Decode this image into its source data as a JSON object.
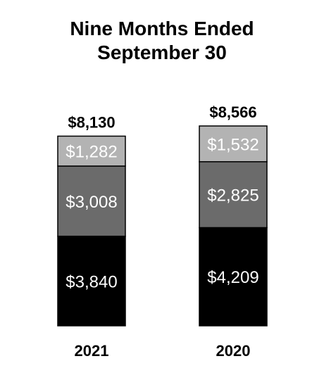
{
  "title_line1": "Nine Months Ended",
  "title_line2": "September 30",
  "chart_data": {
    "type": "bar",
    "stacked": true,
    "categories": [
      "2021",
      "2020"
    ],
    "totals": [
      "$8,130",
      "$8,566"
    ],
    "total_values": [
      8130,
      8566
    ],
    "series": [
      {
        "values": [
          3840,
          4209
        ],
        "labels": [
          "$3,840",
          "$4,209"
        ],
        "color": "#000000"
      },
      {
        "values": [
          3008,
          2825
        ],
        "labels": [
          "$3,008",
          "$2,825"
        ],
        "color": "#6b6b6b"
      },
      {
        "values": [
          1282,
          1532
        ],
        "labels": [
          "$1,282",
          "$1,532"
        ],
        "color": "#b3b3b3"
      }
    ],
    "legend": "none",
    "grid": false,
    "ylim": [
      0,
      8566
    ]
  }
}
